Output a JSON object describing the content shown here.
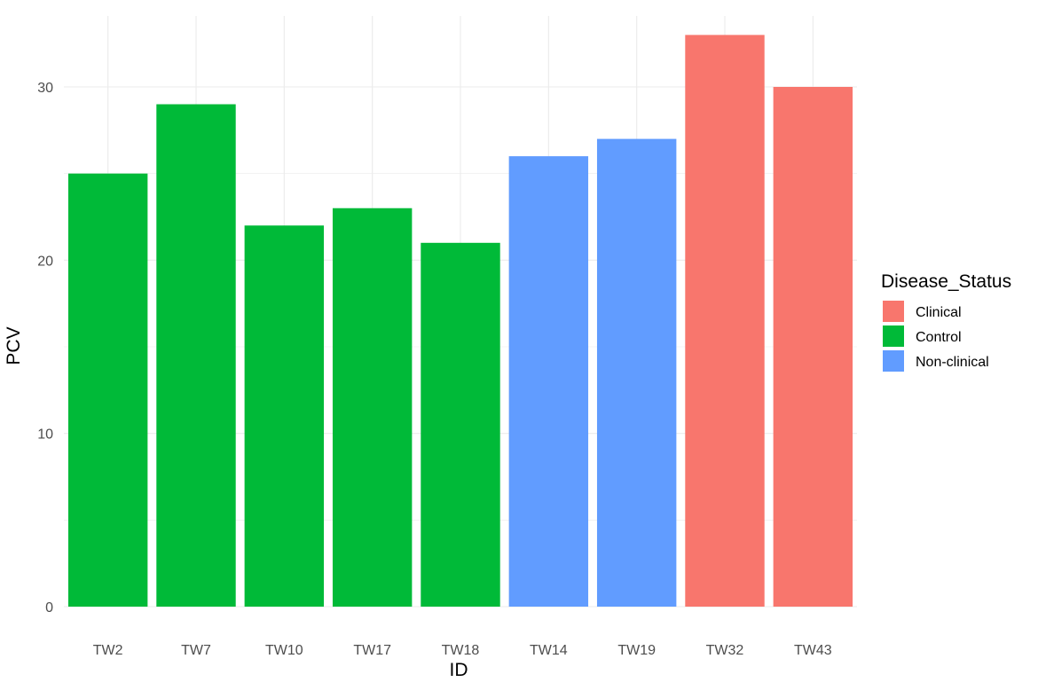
{
  "chart_data": {
    "type": "bar",
    "title": "",
    "xlabel": "ID",
    "ylabel": "PCV",
    "categories": [
      "TW2",
      "TW7",
      "TW10",
      "TW17",
      "TW18",
      "TW14",
      "TW19",
      "TW32",
      "TW43"
    ],
    "values": [
      25,
      29,
      22,
      23,
      21,
      26,
      27,
      33,
      30
    ],
    "groups": [
      "Control",
      "Control",
      "Control",
      "Control",
      "Control",
      "Non-clinical",
      "Non-clinical",
      "Clinical",
      "Clinical"
    ],
    "ylim": [
      0,
      33
    ],
    "yticks": [
      0,
      10,
      20,
      30
    ],
    "grid": true,
    "legend": {
      "title": "Disease_Status",
      "placement": "right",
      "entries": [
        {
          "name": "Clinical",
          "color": "#F8766D"
        },
        {
          "name": "Control",
          "color": "#00BA38"
        },
        {
          "name": "Non-clinical",
          "color": "#619CFF"
        }
      ]
    }
  }
}
